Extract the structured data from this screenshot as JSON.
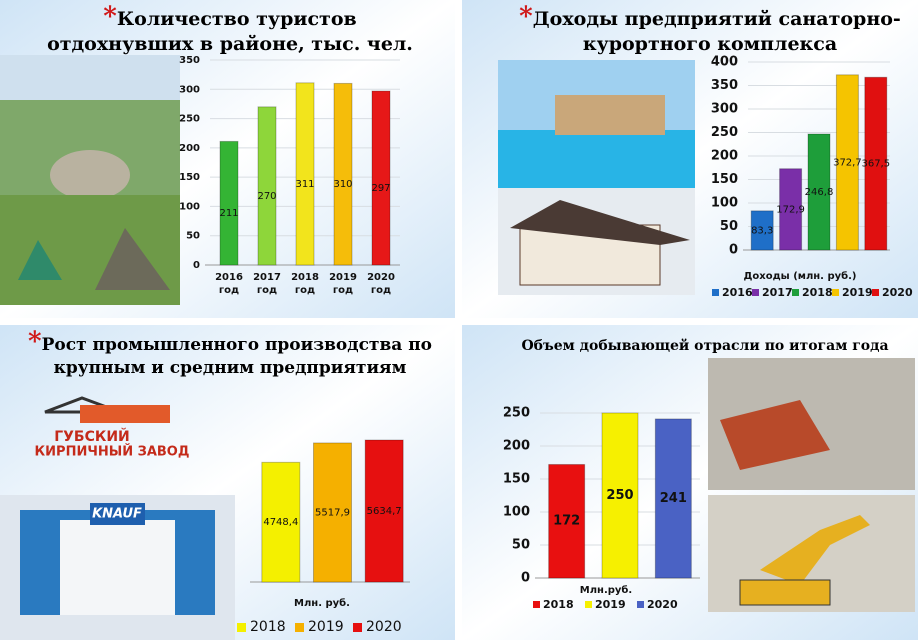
{
  "chart_data": [
    {
      "type": "bar",
      "title_mark": "*",
      "title": "Количество туристов отдохнувших в районе, тыс. чел.",
      "categories": [
        "2016 год",
        "2017 год",
        "2018 год",
        "2019 год",
        "2020 год"
      ],
      "values": [
        211,
        270,
        311,
        310,
        297
      ],
      "colors": [
        "#34b434",
        "#8ed63a",
        "#f2e41c",
        "#f5bd0a",
        "#e61818"
      ],
      "ylim": [
        0,
        350
      ],
      "yticks": [
        0,
        50,
        100,
        150,
        200,
        250,
        300,
        350
      ]
    },
    {
      "type": "bar",
      "title_mark": "*",
      "title": "Доходы предприятий санаторно-курортного комплекса",
      "x_label": "Доходы (млн. руб.)",
      "series": [
        {
          "name": "2016",
          "color": "#1f6fc8",
          "values": [
            83.3
          ],
          "value_labels": [
            "83,3"
          ]
        },
        {
          "name": "2017",
          "color": "#7a2fa8",
          "values": [
            172.9
          ],
          "value_labels": [
            "172,9"
          ]
        },
        {
          "name": "2018",
          "color": "#1e9e3a",
          "values": [
            246.8
          ],
          "value_labels": [
            "246,8"
          ]
        },
        {
          "name": "2019",
          "color": "#f5c400",
          "values": [
            372.7
          ],
          "value_labels": [
            "372,7"
          ]
        },
        {
          "name": "2020",
          "color": "#e01010",
          "values": [
            367.5
          ],
          "value_labels": [
            "367,5"
          ]
        }
      ],
      "ylim": [
        0,
        400
      ],
      "yticks": [
        0,
        50,
        100,
        150,
        200,
        250,
        300,
        350,
        400
      ]
    },
    {
      "type": "bar",
      "title_mark": "*",
      "title": "Рост промышленного производства по крупным и средним предприятиям",
      "x_label": "Млн. руб.",
      "series": [
        {
          "name": "2018",
          "color": "#f4f000",
          "values": [
            4748.4
          ],
          "value_labels": [
            "4748,4"
          ]
        },
        {
          "name": "2019",
          "color": "#f5b000",
          "values": [
            5517.9
          ],
          "value_labels": [
            "5517,9"
          ]
        },
        {
          "name": "2020",
          "color": "#e61010",
          "values": [
            5634.7
          ],
          "value_labels": [
            "5634,7"
          ]
        }
      ]
    },
    {
      "type": "bar",
      "title": "Объем добывающей отрасли по итогам года",
      "x_label": "Млн.руб.",
      "series": [
        {
          "name": "2018",
          "color": "#e81010",
          "values": [
            172
          ]
        },
        {
          "name": "2019",
          "color": "#f6f000",
          "values": [
            250
          ]
        },
        {
          "name": "2020",
          "color": "#4a62c4",
          "values": [
            241
          ]
        }
      ],
      "ylim": [
        0,
        250
      ],
      "yticks": [
        0,
        50,
        100,
        150,
        200,
        250
      ]
    }
  ],
  "images": {
    "logo_name": "ГУБСКИЙ",
    "logo_subtitle": "КИРПИЧНЫЙ ЗАВОД",
    "booth_brand": "KNAUF"
  }
}
